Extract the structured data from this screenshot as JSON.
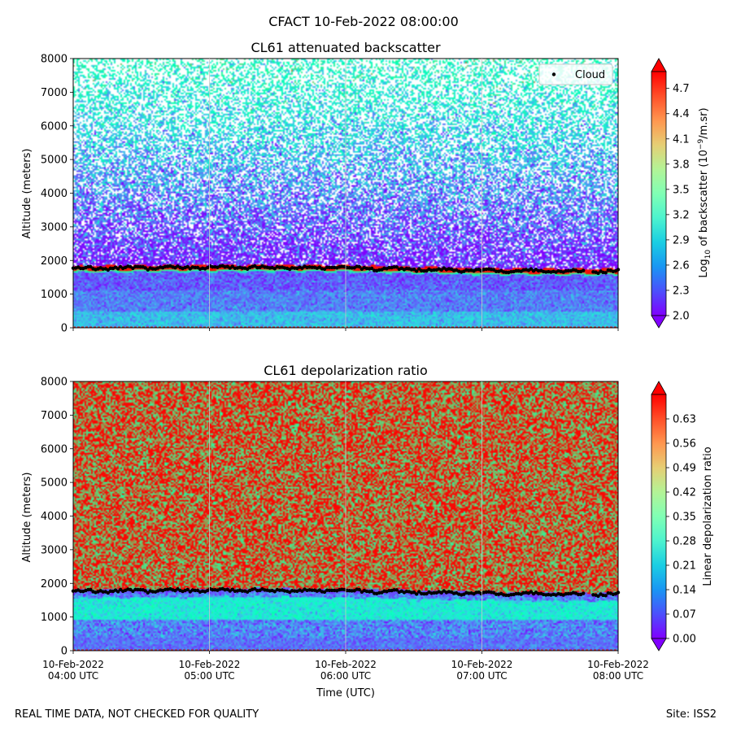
{
  "suptitle": "CFACT 10-Feb-2022 08:00:00",
  "footer": {
    "left": "REAL TIME DATA, NOT CHECKED FOR QUALITY",
    "right": "Site: ISS2"
  },
  "chart_data": [
    {
      "type": "heatmap",
      "title": "CL61 attenuated backscatter",
      "ylabel": "Altitude (meters)",
      "xlabel": "",
      "ylim": [
        0,
        8000
      ],
      "yticks": [
        "0",
        "1000",
        "2000",
        "3000",
        "4000",
        "5000",
        "6000",
        "7000",
        "8000"
      ],
      "xlim_hours_utc": [
        4,
        8
      ],
      "colorbar": {
        "label_prefix": "Log",
        "label_sub": "10",
        "label_mid": " of backscatter (10",
        "label_sup": "−9",
        "label_suffix": "/m.sr)",
        "range": [
          2.0,
          4.9
        ],
        "ticks": [
          "2.0",
          "2.3",
          "2.6",
          "2.9",
          "3.2",
          "3.5",
          "3.8",
          "4.1",
          "4.4",
          "4.7"
        ],
        "colormap": "rainbow"
      },
      "legend": {
        "entries": [
          "Cloud"
        ],
        "location": "top-right"
      },
      "cloud_base_m": {
        "time_hours": [
          4.0,
          4.5,
          5.0,
          5.5,
          6.0,
          6.5,
          7.0,
          7.5,
          8.0
        ],
        "altitude": [
          1760,
          1780,
          1790,
          1800,
          1780,
          1740,
          1700,
          1680,
          1680
        ]
      }
    },
    {
      "type": "heatmap",
      "title": "CL61 depolarization ratio",
      "ylabel": "Altitude (meters)",
      "xlabel": "Time (UTC)",
      "ylim": [
        0,
        8000
      ],
      "yticks": [
        "0",
        "1000",
        "2000",
        "3000",
        "4000",
        "5000",
        "6000",
        "7000",
        "8000"
      ],
      "xticks": [
        {
          "date": "10-Feb-2022",
          "time": "04:00 UTC"
        },
        {
          "date": "10-Feb-2022",
          "time": "05:00 UTC"
        },
        {
          "date": "10-Feb-2022",
          "time": "06:00 UTC"
        },
        {
          "date": "10-Feb-2022",
          "time": "07:00 UTC"
        },
        {
          "date": "10-Feb-2022",
          "time": "08:00 UTC"
        }
      ],
      "colorbar": {
        "label": "Linear depolarization ratio",
        "range": [
          0.0,
          0.7
        ],
        "ticks": [
          "0.00",
          "0.07",
          "0.14",
          "0.21",
          "0.28",
          "0.35",
          "0.42",
          "0.49",
          "0.56",
          "0.63"
        ],
        "colormap": "rainbow"
      },
      "cloud_base_m": {
        "time_hours": [
          4.0,
          4.5,
          5.0,
          5.5,
          6.0,
          6.5,
          7.0,
          7.5,
          8.0
        ],
        "altitude": [
          1760,
          1780,
          1790,
          1800,
          1780,
          1740,
          1700,
          1680,
          1680
        ]
      }
    }
  ]
}
